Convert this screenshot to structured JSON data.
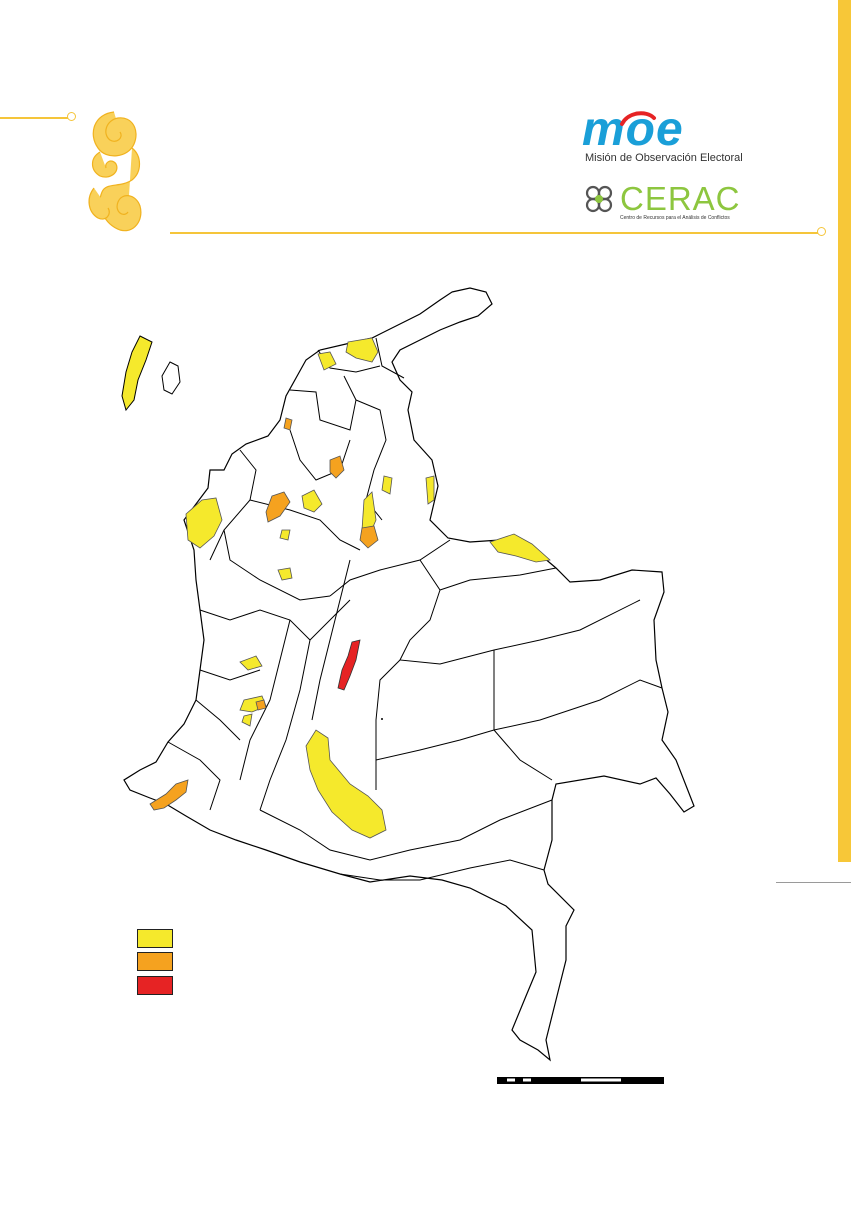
{
  "header": {
    "moe_logo": {
      "word": "moe",
      "subtitle": "Misión de Observación Electoral"
    },
    "cerac_logo": {
      "word": "CERAC",
      "subtitle": "Centro de Recursos para el Análisis de Conflictos"
    }
  },
  "colors": {
    "accent": "#f7c738",
    "risk_low": "#f5e92c",
    "risk_medium": "#f5a21f",
    "risk_high": "#e62324",
    "map_fill": "#ffffff",
    "map_stroke": "#000000"
  },
  "map": {
    "region": "Colombia",
    "highlighted_area_colors": [
      "yellow",
      "orange",
      "red"
    ]
  },
  "legend": {
    "entries": [
      {
        "color": "#f5e92c",
        "label": ""
      },
      {
        "color": "#f5a21f",
        "label": ""
      },
      {
        "color": "#e62324",
        "label": ""
      }
    ]
  },
  "icons": {
    "decorative": "spiral-ornament-icon",
    "cerac_mark": "flower-icon"
  }
}
